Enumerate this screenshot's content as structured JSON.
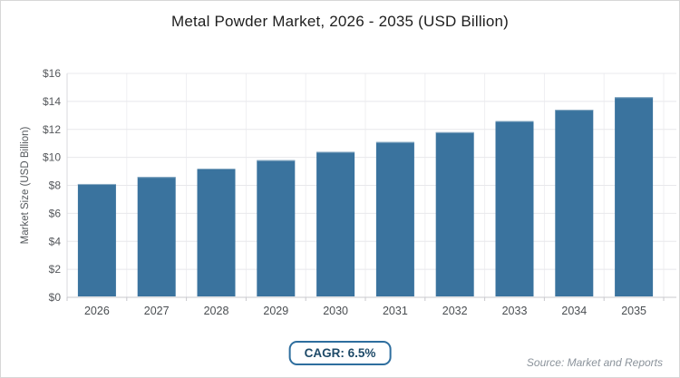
{
  "chart_data": {
    "type": "bar",
    "title": "Metal Powder Market, 2026 - 2035 (USD Billion)",
    "categories": [
      "2026",
      "2027",
      "2028",
      "2029",
      "2030",
      "2031",
      "2032",
      "2033",
      "2034",
      "2035"
    ],
    "values": [
      8.1,
      8.6,
      9.2,
      9.8,
      10.4,
      11.1,
      11.8,
      12.6,
      13.4,
      14.3
    ],
    "xlabel": "",
    "ylabel": "Market Size (USD Billion)",
    "ylim": [
      0,
      16
    ],
    "ytick_step": 2,
    "ytick_prefix": "$",
    "grid": true,
    "legend_position": "none",
    "colors": {
      "bar": "#3a739e",
      "bar_top_highlight": "#84a7c1",
      "grid_horizontal": "#e8e8ec",
      "grid_vertical": "#efeff2",
      "axis_bottom": "#c8c8cd",
      "axis_left": "#d8d8dc",
      "accent": "#2e6e9e",
      "badge_text": "#1e4a68",
      "source_text": "#8b939b"
    }
  },
  "annotations": {
    "cagr": "CAGR: 6.5%",
    "source": "Source: Market and Reports"
  }
}
